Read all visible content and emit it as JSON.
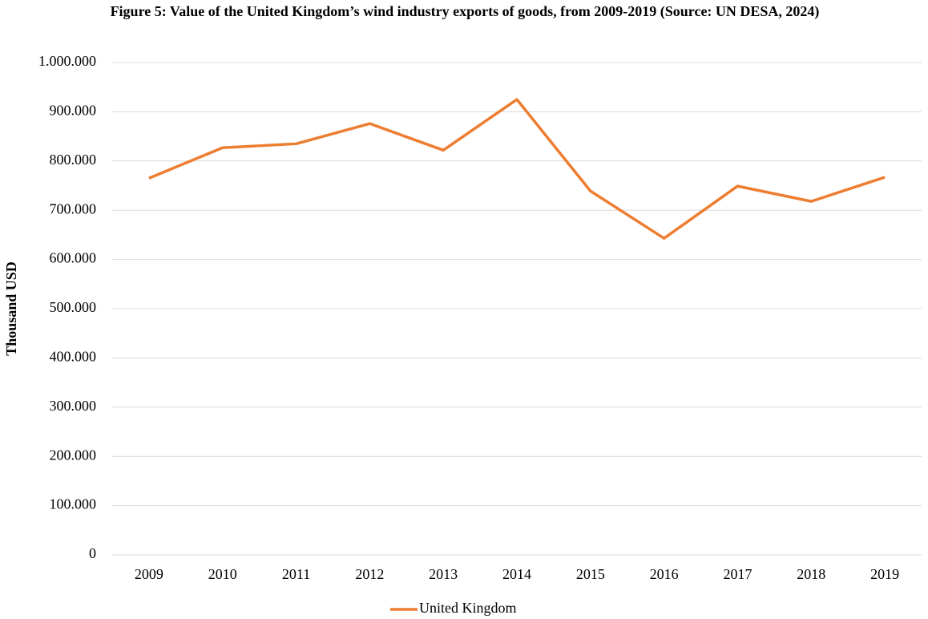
{
  "chart_data": {
    "type": "line",
    "title": "Figure 5: Value of the United Kingdom’s wind industry exports of goods, from 2009-2019 (Source: UN DESA, 2024)",
    "y_label": "Thousand USD",
    "categories": [
      "2009",
      "2010",
      "2011",
      "2012",
      "2013",
      "2014",
      "2015",
      "2016",
      "2017",
      "2018",
      "2019"
    ],
    "series": [
      {
        "name": "United Kingdom",
        "color": "#ed7d31",
        "values": [
          765000,
          827000,
          835000,
          876000,
          822000,
          925000,
          739000,
          643000,
          749000,
          718000,
          767000
        ]
      }
    ],
    "ylim": [
      0,
      1000000
    ],
    "yticks": [
      0,
      {
        "value": 100000,
        "label": "100.000"
      },
      {
        "value": 200000,
        "label": "200.000"
      },
      {
        "value": 300000,
        "label": "300.000"
      },
      {
        "value": 400000,
        "label": "400.000"
      },
      {
        "value": 500000,
        "label": "500.000"
      },
      {
        "value": 600000,
        "label": "600.000"
      },
      {
        "value": 700000,
        "label": "700.000"
      },
      {
        "value": 800000,
        "label": "800.000"
      },
      {
        "value": 900000,
        "label": "900.000"
      },
      {
        "value": 1000000,
        "label": "1.000.000"
      }
    ],
    "grid": true,
    "legend": "bottom"
  }
}
